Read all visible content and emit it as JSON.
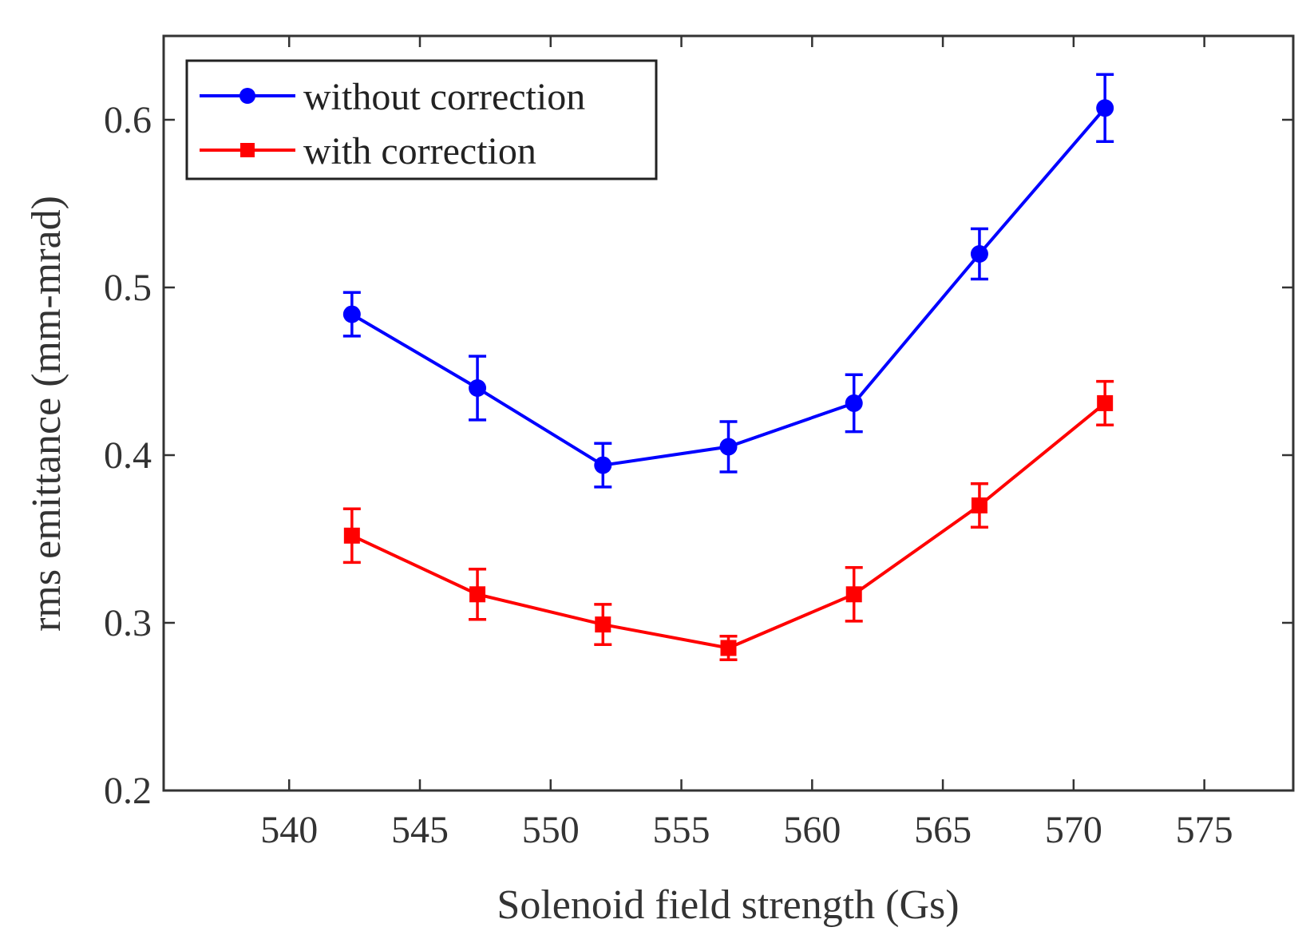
{
  "chart_data": {
    "type": "line",
    "xlabel": "Solenoid field strength (Gs)",
    "ylabel": "rms emittance  (mm-mrad)",
    "xlim": [
      535.2,
      578.4
    ],
    "ylim": [
      0.2,
      0.65
    ],
    "xticks": [
      540,
      545,
      550,
      555,
      560,
      565,
      570,
      575
    ],
    "yticks": [
      0.2,
      0.3,
      0.4,
      0.5,
      0.6
    ],
    "xtick_labels": [
      "540",
      "545",
      "550",
      "555",
      "560",
      "565",
      "570",
      "575"
    ],
    "ytick_labels": [
      "0.2",
      "0.3",
      "0.4",
      "0.5",
      "0.6"
    ],
    "grid": false,
    "legend_position": "top-left",
    "x": [
      542.4,
      547.2,
      552.0,
      556.8,
      561.6,
      566.4,
      571.2
    ],
    "series": [
      {
        "name": "without correction",
        "color": "#0000ff",
        "marker": "circle",
        "values": [
          0.484,
          0.44,
          0.394,
          0.405,
          0.431,
          0.52,
          0.607
        ],
        "errors": [
          0.013,
          0.019,
          0.013,
          0.015,
          0.017,
          0.015,
          0.02
        ]
      },
      {
        "name": "with correction",
        "color": "#ff0000",
        "marker": "square",
        "values": [
          0.352,
          0.317,
          0.299,
          0.285,
          0.317,
          0.37,
          0.431
        ],
        "errors": [
          0.016,
          0.015,
          0.012,
          0.007,
          0.016,
          0.013,
          0.013
        ]
      }
    ]
  }
}
